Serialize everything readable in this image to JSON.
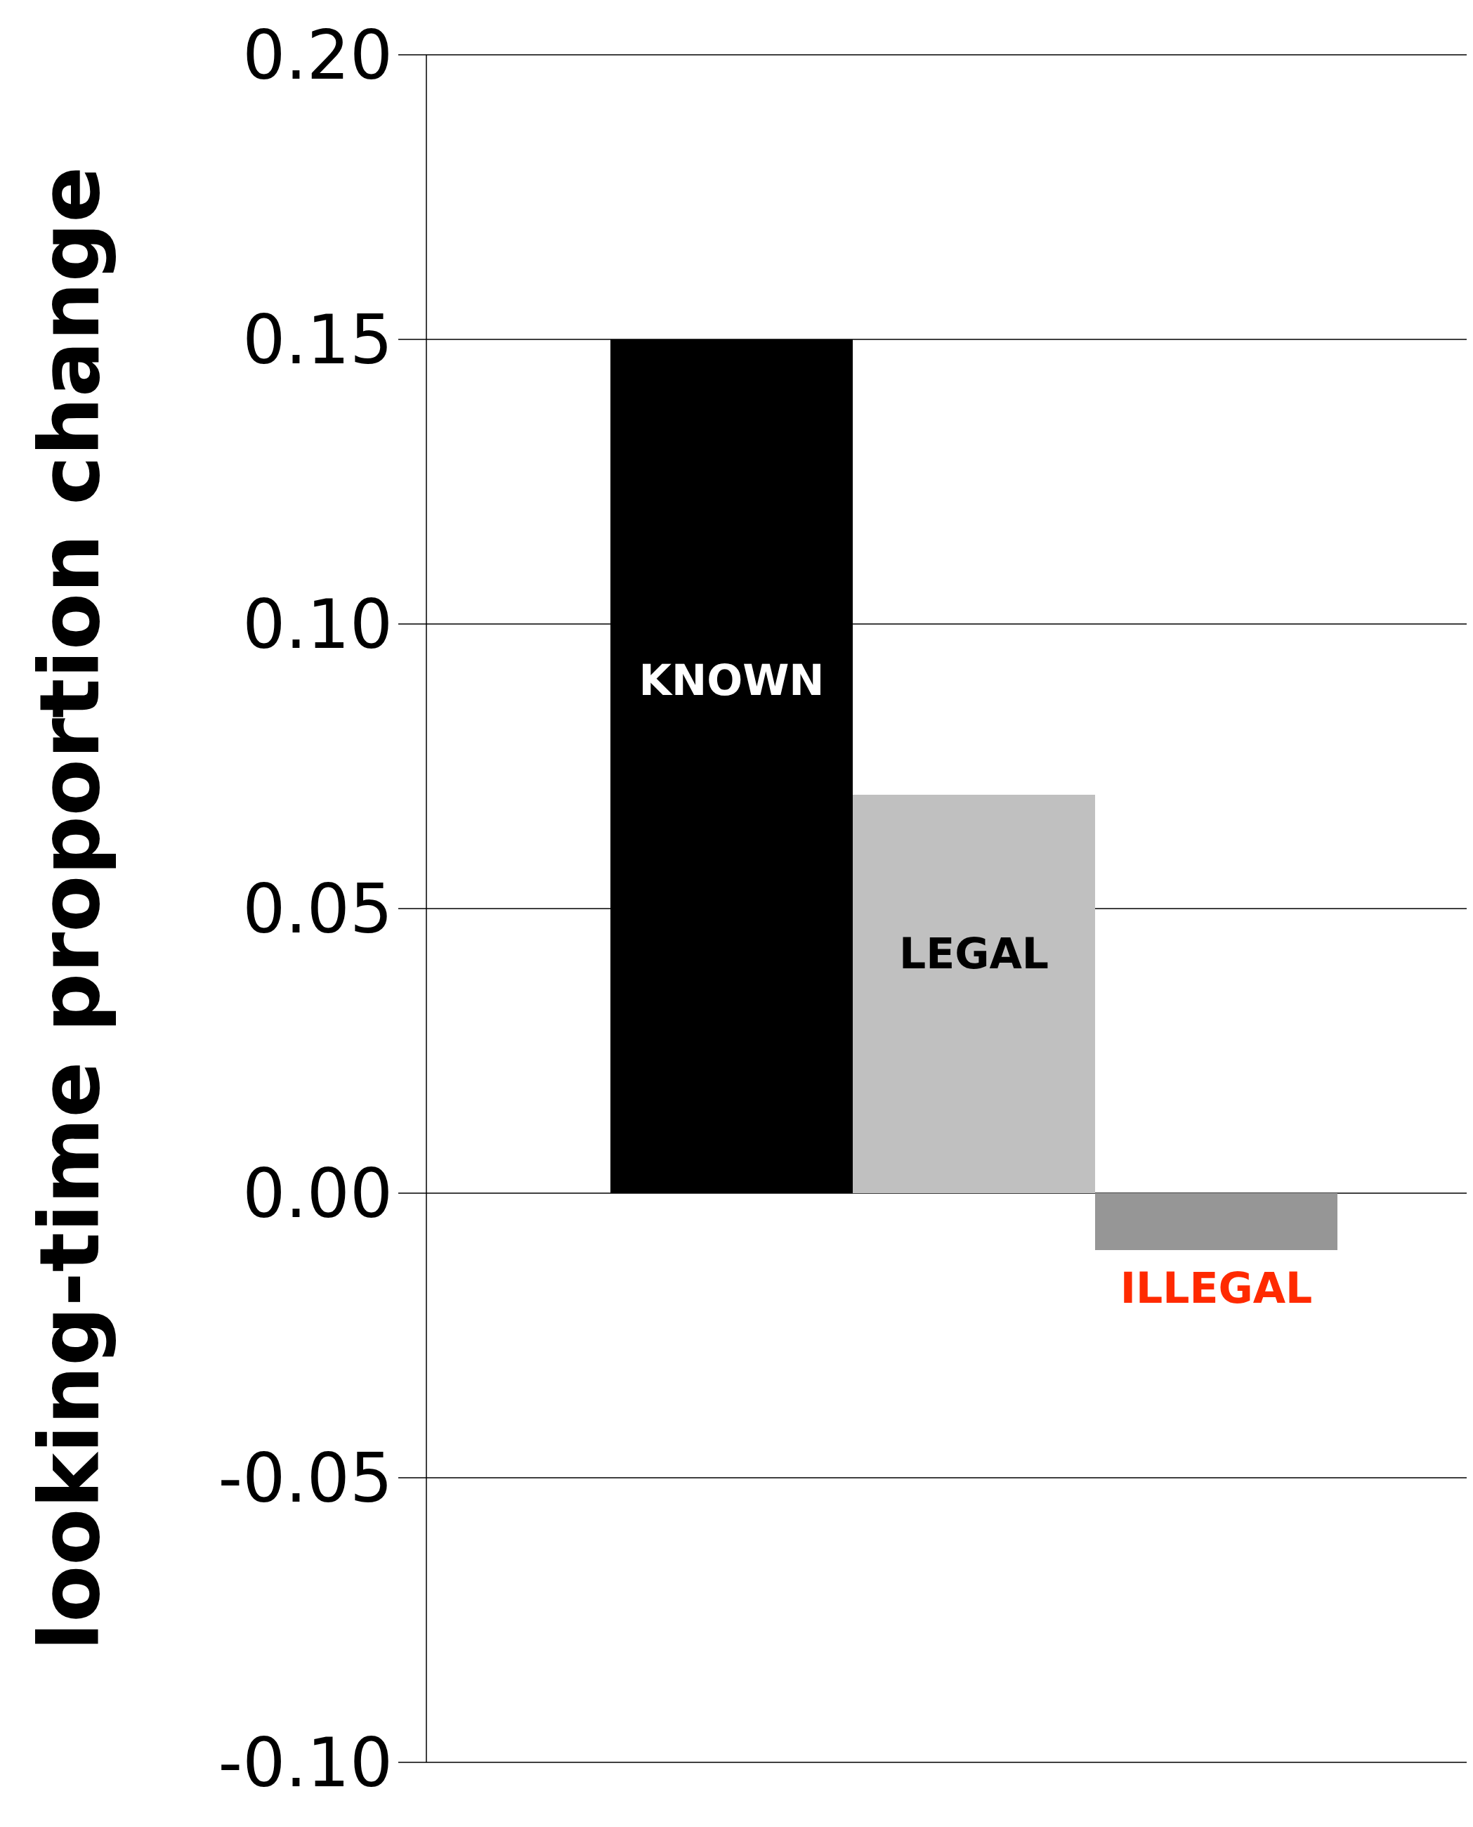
{
  "chart_data": {
    "type": "bar",
    "ylabel": "looking-time proportion change",
    "categories": [
      "KNOWN",
      "LEGAL",
      "ILLEGAL"
    ],
    "values": [
      0.15,
      0.07,
      -0.01
    ],
    "colors": [
      "#000000",
      "#c0c0c0",
      "#969696"
    ],
    "ylim": [
      -0.1,
      0.2
    ],
    "yticks": [
      {
        "value": -0.1,
        "label": "-0.10"
      },
      {
        "value": -0.05,
        "label": "-0.05"
      },
      {
        "value": 0,
        "label": "0.00"
      },
      {
        "value": 0.05,
        "label": "0.05"
      },
      {
        "value": 0.1,
        "label": "0.10"
      },
      {
        "value": 0.15,
        "label": "0.15"
      },
      {
        "value": 0.2,
        "label": "0.20"
      }
    ],
    "grid": "y",
    "legend": false,
    "tick_labels": "y"
  }
}
